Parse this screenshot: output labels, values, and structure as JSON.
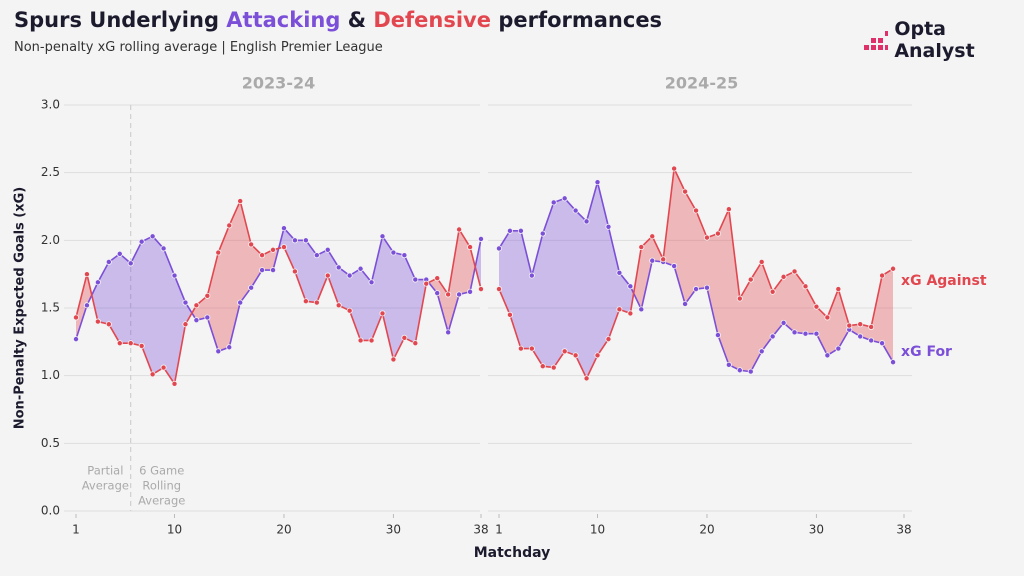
{
  "header": {
    "title_parts": [
      "Spurs Underlying",
      "Attacking",
      "&",
      "Defensive",
      "performances"
    ],
    "subtitle": "Non-penalty xG rolling average | English Premier League",
    "logo": "Opta Analyst",
    "x_label": "Matchday"
  },
  "chart_data": [
    {
      "type": "line",
      "title": "2023-24",
      "y_label": "Non-Penalty Expected Goals (xG)",
      "x": [
        1,
        2,
        3,
        4,
        5,
        6,
        7,
        8,
        9,
        10,
        11,
        12,
        13,
        14,
        15,
        16,
        17,
        18,
        19,
        20,
        21,
        22,
        23,
        24,
        25,
        26,
        27,
        28,
        29,
        30,
        31,
        32,
        33,
        34,
        35,
        36,
        37,
        38
      ],
      "xlim": [
        1,
        38
      ],
      "xticks": [
        1,
        10,
        20,
        30,
        38
      ],
      "ylim": [
        0,
        3
      ],
      "yticks": [
        {
          "value": 0,
          "label": "0.0"
        },
        {
          "value": 0.5,
          "label": "0.5"
        },
        {
          "value": 1,
          "label": "1.0"
        },
        {
          "value": 1.5,
          "label": "1.5"
        },
        {
          "value": 2,
          "label": "2.0"
        },
        {
          "value": 2.5,
          "label": "2.5"
        },
        {
          "value": 3,
          "label": "3.0"
        }
      ],
      "divider_x": 6,
      "annotations": [
        {
          "lines": [
            "Partial",
            "Average"
          ]
        },
        {
          "lines": [
            "6 Game",
            "Rolling",
            "Average"
          ]
        }
      ],
      "series": [
        {
          "color": "#7b4fd8",
          "values": [
            1.27,
            1.52,
            1.69,
            1.84,
            1.9,
            1.83,
            1.99,
            2.03,
            1.94,
            1.74,
            1.54,
            1.41,
            1.43,
            1.18,
            1.21,
            1.54,
            1.65,
            1.78,
            1.78,
            2.09,
            2.0,
            2.0,
            1.89,
            1.93,
            1.8,
            1.74,
            1.79,
            1.69,
            2.03,
            1.91,
            1.89,
            1.71,
            1.71,
            1.61,
            1.32,
            1.6,
            1.62,
            2.01
          ]
        },
        {
          "color": "#e2474f",
          "values": [
            1.43,
            1.75,
            1.4,
            1.38,
            1.24,
            1.24,
            1.22,
            1.01,
            1.06,
            0.94,
            1.38,
            1.52,
            1.59,
            1.91,
            2.11,
            2.29,
            1.97,
            1.89,
            1.93,
            1.95,
            1.77,
            1.55,
            1.54,
            1.74,
            1.52,
            1.48,
            1.26,
            1.26,
            1.46,
            1.12,
            1.28,
            1.24,
            1.68,
            1.72,
            1.6,
            2.08,
            1.95,
            1.64
          ]
        }
      ]
    },
    {
      "type": "line",
      "title": "2024-25",
      "x": [
        1,
        2,
        3,
        4,
        5,
        6,
        7,
        8,
        9,
        10,
        11,
        12,
        13,
        14,
        15,
        16,
        17,
        18,
        19,
        20,
        21,
        22,
        23,
        24,
        25,
        26,
        27,
        28,
        29,
        30,
        31,
        32,
        33,
        34,
        35,
        36,
        37
      ],
      "xlim": [
        1,
        38
      ],
      "xticks": [
        1,
        10,
        20,
        30,
        38
      ],
      "ylim": [
        0,
        3
      ],
      "series": [
        {
          "name": "xG For",
          "color": "#7b4fd8",
          "values": [
            1.94,
            2.07,
            2.07,
            1.74,
            2.05,
            2.28,
            2.31,
            2.22,
            2.14,
            2.43,
            2.1,
            1.76,
            1.66,
            1.49,
            1.85,
            1.84,
            1.81,
            1.53,
            1.64,
            1.65,
            1.3,
            1.08,
            1.04,
            1.03,
            1.18,
            1.29,
            1.39,
            1.32,
            1.31,
            1.31,
            1.15,
            1.2,
            1.34,
            1.29,
            1.26,
            1.24,
            1.1
          ]
        },
        {
          "name": "xG Against",
          "color": "#e2474f",
          "values": [
            1.64,
            1.45,
            1.2,
            1.2,
            1.07,
            1.06,
            1.18,
            1.15,
            0.98,
            1.15,
            1.27,
            1.49,
            1.46,
            1.95,
            2.03,
            1.86,
            2.53,
            2.36,
            2.22,
            2.02,
            2.05,
            2.23,
            1.57,
            1.71,
            1.84,
            1.62,
            1.73,
            1.77,
            1.66,
            1.51,
            1.43,
            1.64,
            1.37,
            1.38,
            1.36,
            1.74,
            1.79
          ]
        }
      ]
    }
  ]
}
